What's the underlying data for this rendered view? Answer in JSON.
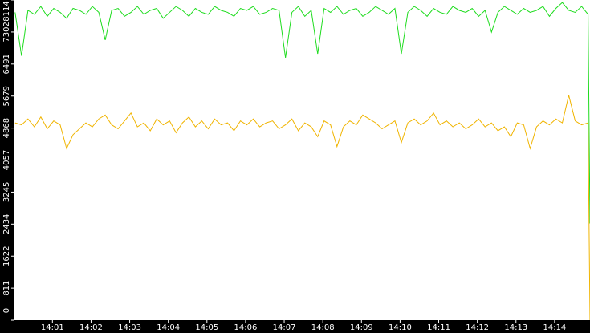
{
  "chart_data": {
    "type": "line",
    "x": [
      2,
      12,
      22,
      32,
      42,
      52,
      62,
      72,
      82,
      92,
      102,
      112,
      122,
      132,
      142,
      152,
      162,
      172,
      182,
      192,
      202,
      212,
      222,
      232,
      242,
      252,
      262,
      272,
      282,
      292,
      302,
      312,
      322,
      332,
      342,
      352,
      362,
      372,
      382,
      392,
      402,
      412,
      422,
      432,
      442,
      452,
      462,
      472,
      482,
      492,
      502,
      512,
      522,
      532,
      542,
      552,
      562,
      572,
      582,
      592,
      602,
      612,
      622,
      632,
      642,
      652,
      662,
      672,
      682,
      692,
      702,
      712,
      722,
      732,
      742,
      752,
      762,
      772,
      782,
      792,
      802,
      812,
      822,
      832,
      842,
      852,
      862,
      872,
      882,
      892,
      895
    ],
    "series": [
      {
        "color": "#1edc1e",
        "values": [
          7800,
          6700,
          7850,
          7750,
          7950,
          7700,
          7900,
          7800,
          7650,
          7900,
          7850,
          7750,
          7950,
          7800,
          7100,
          7850,
          7900,
          7700,
          7800,
          7950,
          7750,
          7850,
          7900,
          7650,
          7800,
          7950,
          7850,
          7700,
          7900,
          7800,
          7750,
          7950,
          7850,
          7800,
          7700,
          7900,
          7850,
          7950,
          7750,
          7800,
          7900,
          7850,
          6650,
          7800,
          7950,
          7700,
          7850,
          6750,
          7900,
          7800,
          7950,
          7750,
          7850,
          7900,
          7700,
          7800,
          7950,
          7850,
          7750,
          7900,
          6750,
          7800,
          7950,
          7850,
          7700,
          7900,
          7800,
          7750,
          7950,
          7850,
          7800,
          7900,
          7700,
          7850,
          7300,
          7800,
          7950,
          7850,
          7750,
          7900,
          7800,
          7850,
          7950,
          7700,
          7900,
          8050,
          7850,
          7800,
          7950,
          7750,
          2450
        ]
      },
      {
        "color": "#f0b400",
        "values": [
          5000,
          4950,
          5100,
          4900,
          5150,
          4850,
          5050,
          4950,
          4350,
          4700,
          4850,
          5000,
          4900,
          5100,
          5200,
          4950,
          4850,
          5050,
          5250,
          4900,
          5000,
          4800,
          5100,
          4950,
          5050,
          4750,
          5000,
          5150,
          4900,
          5050,
          4850,
          5100,
          4950,
          5000,
          4800,
          5050,
          4950,
          5100,
          4900,
          5000,
          5050,
          4850,
          4950,
          5100,
          4800,
          5000,
          4900,
          4650,
          5050,
          4950,
          4400,
          4900,
          5050,
          4950,
          5200,
          5100,
          5000,
          4850,
          4950,
          5050,
          4500,
          5000,
          5100,
          4950,
          5050,
          5250,
          4950,
          5050,
          4900,
          5000,
          4850,
          4950,
          5100,
          4900,
          5000,
          4800,
          4900,
          4650,
          5000,
          4950,
          4350,
          4900,
          5050,
          4950,
          5100,
          5000,
          5700,
          5050,
          4950,
          5000,
          0
        ]
      }
    ],
    "xlim": [
      1,
      895
    ],
    "xticks": [
      {
        "value": 60,
        "label": "14:01"
      },
      {
        "value": 120,
        "label": "14:02"
      },
      {
        "value": 180,
        "label": "14:03"
      },
      {
        "value": 240,
        "label": "14:04"
      },
      {
        "value": 300,
        "label": "14:05"
      },
      {
        "value": 360,
        "label": "14:06"
      },
      {
        "value": 420,
        "label": "14:07"
      },
      {
        "value": 480,
        "label": "14:08"
      },
      {
        "value": 540,
        "label": "14:09"
      },
      {
        "value": 600,
        "label": "14:10"
      },
      {
        "value": 660,
        "label": "14:11"
      },
      {
        "value": 720,
        "label": "14:12"
      },
      {
        "value": 780,
        "label": "14:13"
      },
      {
        "value": 840,
        "label": "14:14"
      }
    ],
    "ylim": [
      0,
      8114
    ],
    "yticks": [
      0,
      811,
      1622,
      2434,
      3245,
      4057,
      4868,
      5679,
      6491,
      7302,
      8114
    ]
  }
}
